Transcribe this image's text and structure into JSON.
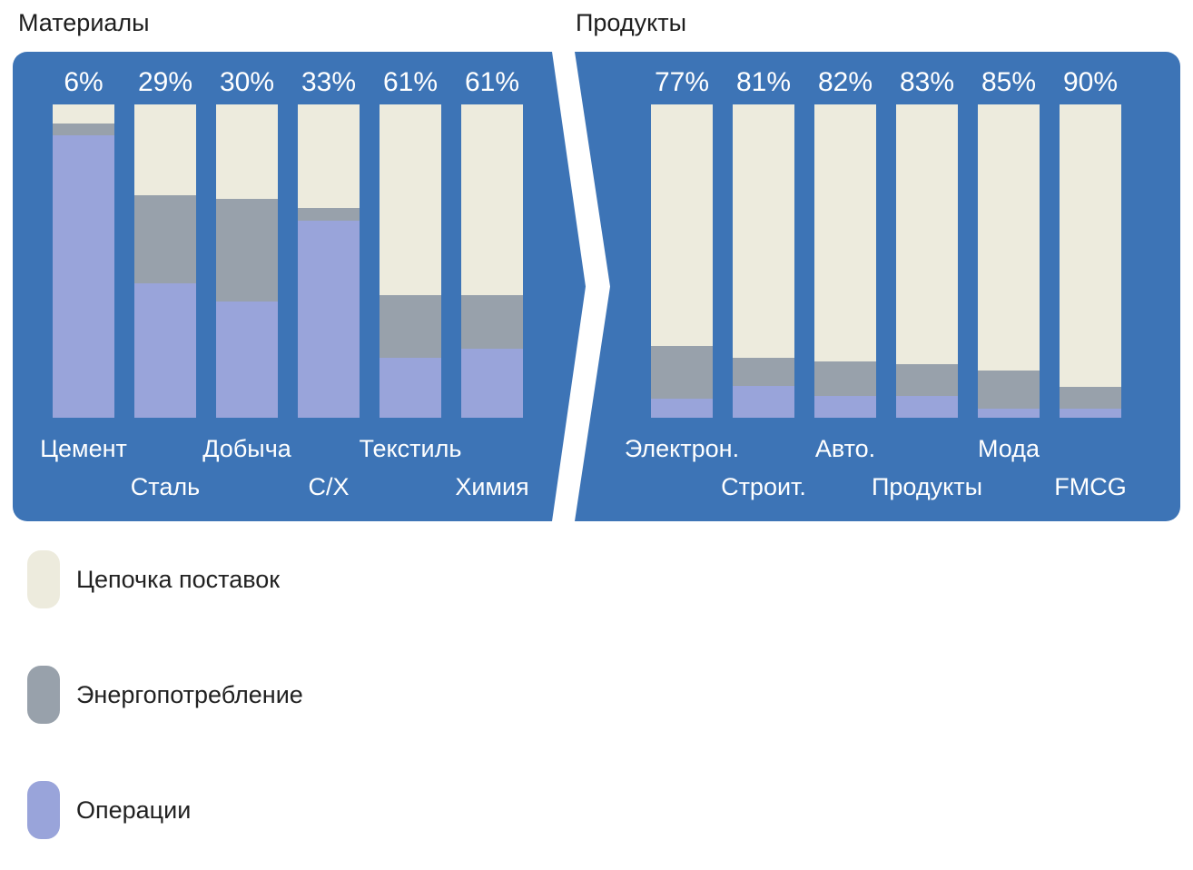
{
  "colors": {
    "panel_blue": "#3D74B6",
    "supply_chain": "#EDEBDD",
    "energy": "#98A1AB",
    "operations": "#99A4DA",
    "title_text": "#1E1E1E",
    "bar_text": "#FFFFFF"
  },
  "chart_data": {
    "type": "bar",
    "subtype": "stacked-100-percent",
    "orientation": "vertical",
    "legend_position": "bottom-left",
    "segments_order_top_to_bottom": [
      "supply_chain",
      "energy",
      "operations"
    ],
    "panels": [
      {
        "title": "Материалы",
        "bars": [
          {
            "label": "Цемент",
            "pct_label": "6%",
            "supply_chain": 6,
            "energy": 4,
            "operations": 90,
            "label_row": 1
          },
          {
            "label": "Сталь",
            "pct_label": "29%",
            "supply_chain": 29,
            "energy": 28,
            "operations": 43,
            "label_row": 2
          },
          {
            "label": "Добыча",
            "pct_label": "30%",
            "supply_chain": 30,
            "energy": 33,
            "operations": 37,
            "label_row": 1
          },
          {
            "label": "С/Х",
            "pct_label": "33%",
            "supply_chain": 33,
            "energy": 4,
            "operations": 63,
            "label_row": 2
          },
          {
            "label": "Текстиль",
            "pct_label": "61%",
            "supply_chain": 61,
            "energy": 20,
            "operations": 19,
            "label_row": 1
          },
          {
            "label": "Химия",
            "pct_label": "61%",
            "supply_chain": 61,
            "energy": 17,
            "operations": 22,
            "label_row": 2
          }
        ]
      },
      {
        "title": "Продукты",
        "bars": [
          {
            "label": "Электрон.",
            "pct_label": "77%",
            "supply_chain": 77,
            "energy": 17,
            "operations": 6,
            "label_row": 1
          },
          {
            "label": "Строит.",
            "pct_label": "81%",
            "supply_chain": 81,
            "energy": 9,
            "operations": 10,
            "label_row": 2
          },
          {
            "label": "Авто.",
            "pct_label": "82%",
            "supply_chain": 82,
            "energy": 11,
            "operations": 7,
            "label_row": 1
          },
          {
            "label": "Продукты",
            "pct_label": "83%",
            "supply_chain": 83,
            "energy": 10,
            "operations": 7,
            "label_row": 2
          },
          {
            "label": "Мода",
            "pct_label": "85%",
            "supply_chain": 85,
            "energy": 12,
            "operations": 3,
            "label_row": 1
          },
          {
            "label": "FMCG",
            "pct_label": "90%",
            "supply_chain": 90,
            "energy": 7,
            "operations": 3,
            "label_row": 2
          }
        ]
      }
    ],
    "legend": [
      {
        "label": "Цепочка поставок",
        "color_key": "supply_chain"
      },
      {
        "label": "Энергопотребление",
        "color_key": "energy"
      },
      {
        "label": "Операции",
        "color_key": "operations"
      }
    ]
  }
}
